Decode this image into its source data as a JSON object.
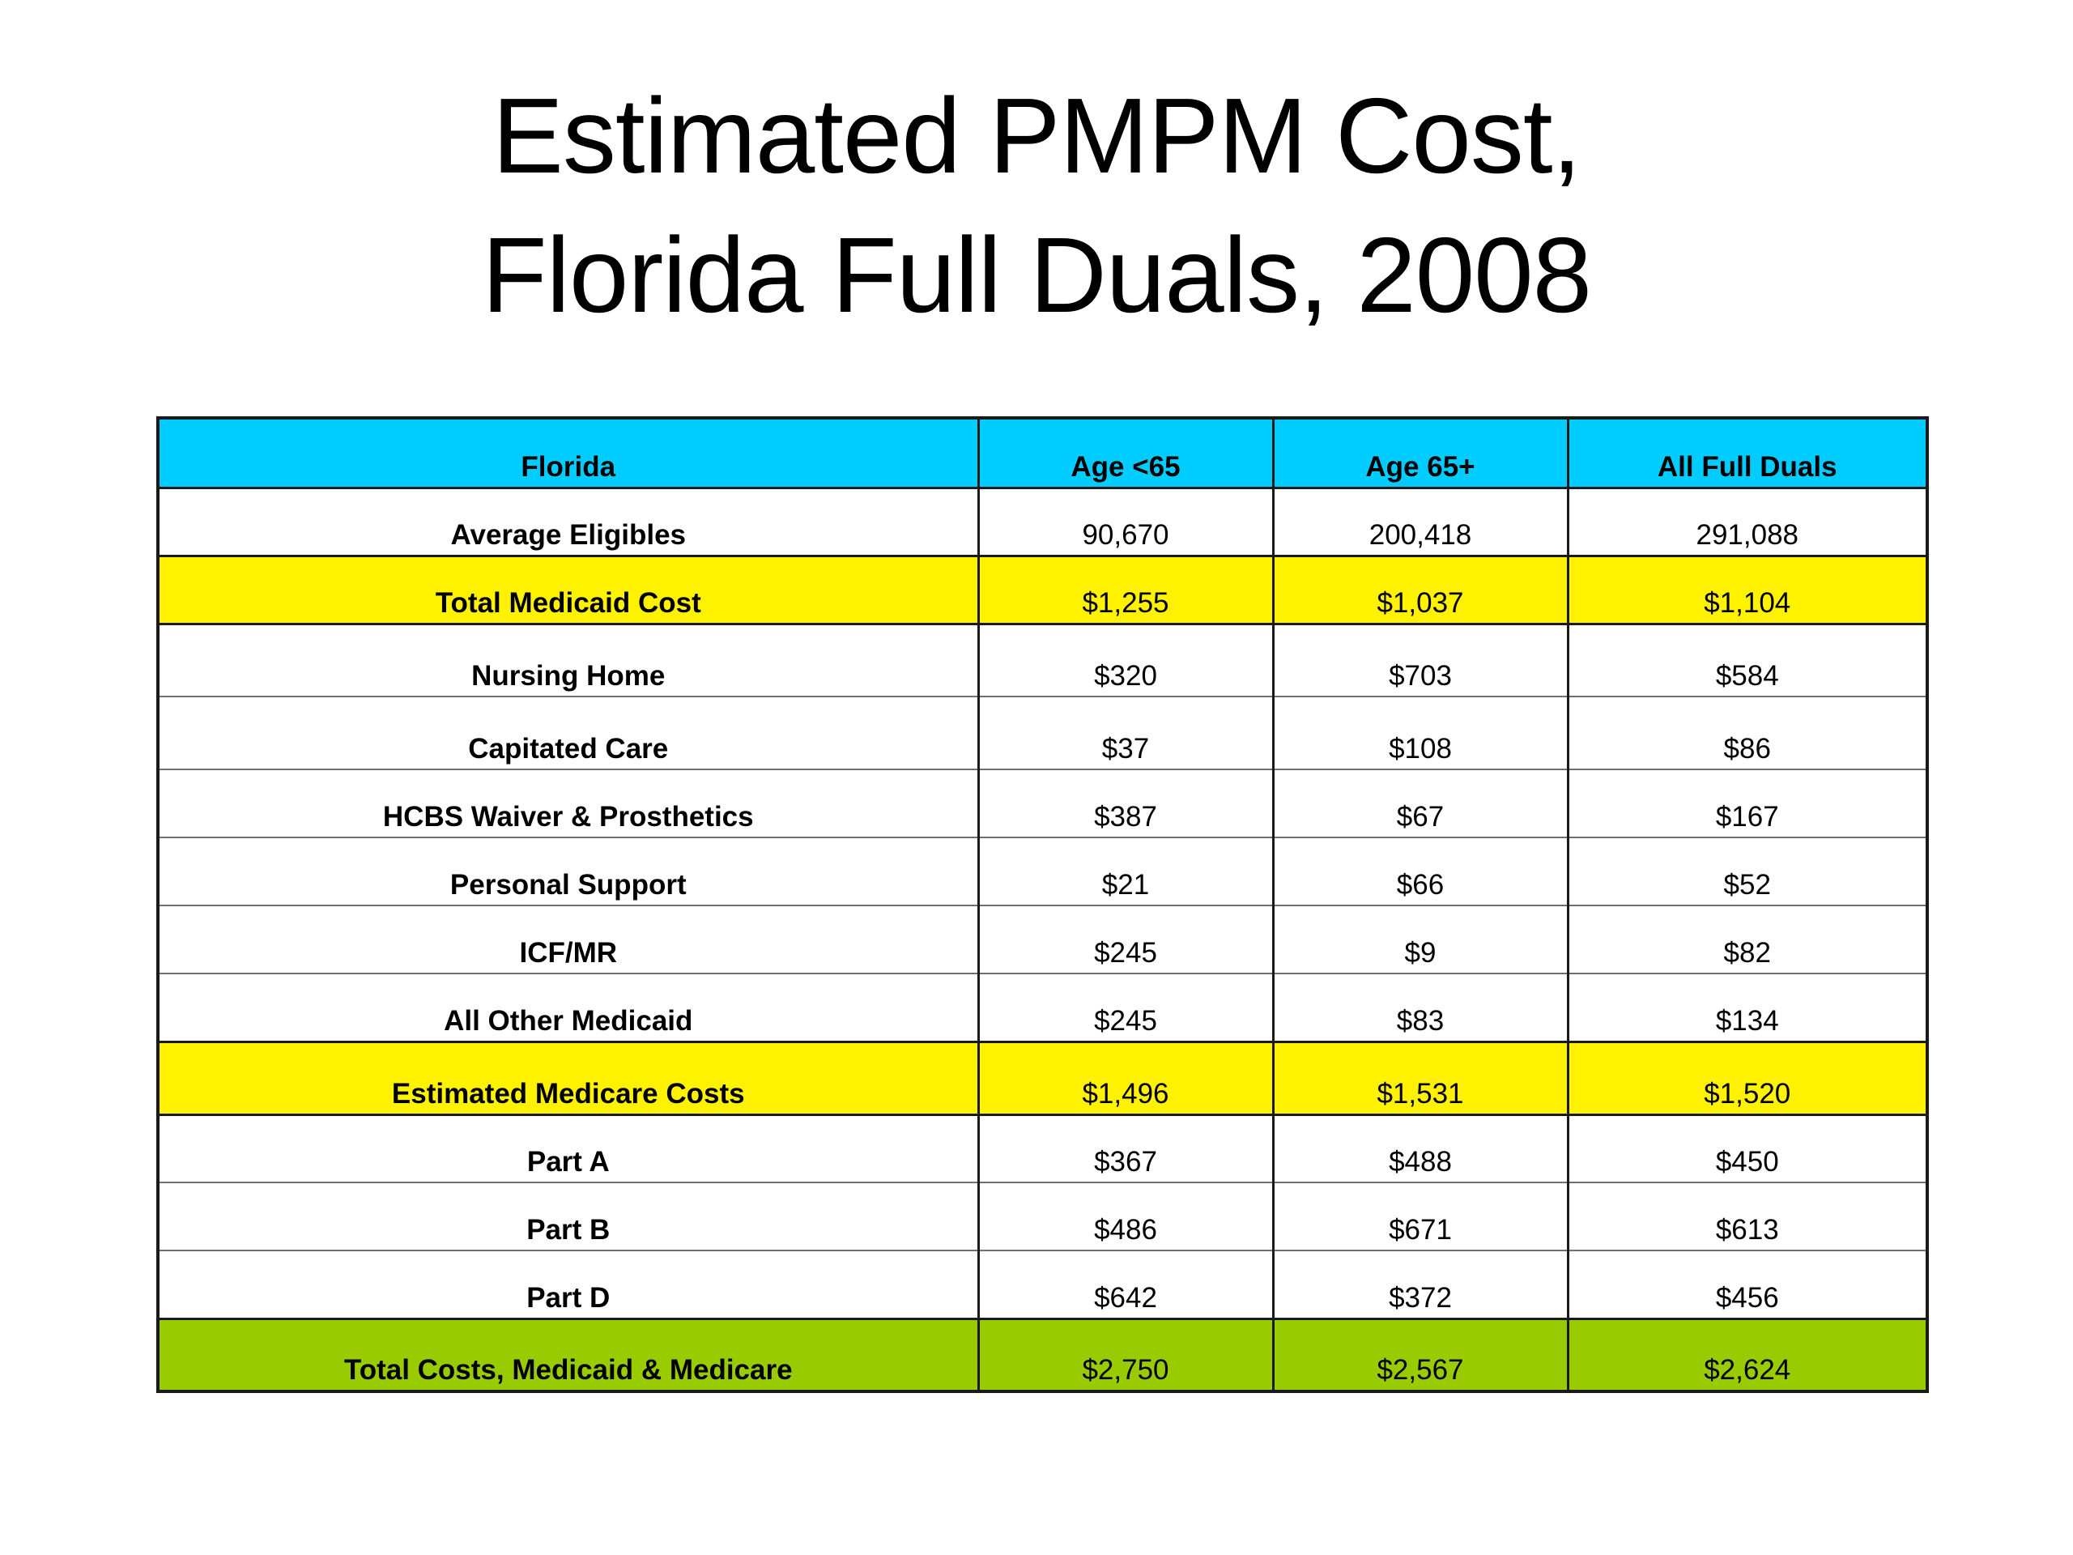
{
  "title": {
    "line1": "Estimated PMPM Cost,",
    "line2": "Florida Full Duals, 2008"
  },
  "table": {
    "headers": [
      "Florida",
      "Age <65",
      "Age 65+",
      "All Full Duals"
    ],
    "rows": [
      {
        "label": "Average Eligibles",
        "values": [
          "90,670",
          "200,418",
          "291,088"
        ]
      },
      {
        "label": "Total Medicaid Cost",
        "values": [
          "$1,255",
          "$1,037",
          "$1,104"
        ]
      },
      {
        "label": "Nursing Home",
        "values": [
          "$320",
          "$703",
          "$584"
        ]
      },
      {
        "label": "Capitated Care",
        "values": [
          "$37",
          "$108",
          "$86"
        ]
      },
      {
        "label": "HCBS Waiver & Prosthetics",
        "values": [
          "$387",
          "$67",
          "$167"
        ]
      },
      {
        "label": "Personal Support",
        "values": [
          "$21",
          "$66",
          "$52"
        ]
      },
      {
        "label": "ICF/MR",
        "values": [
          "$245",
          "$9",
          "$82"
        ]
      },
      {
        "label": "All Other Medicaid",
        "values": [
          "$245",
          "$83",
          "$134"
        ]
      },
      {
        "label": "Estimated Medicare Costs",
        "values": [
          "$1,496",
          "$1,531",
          "$1,520"
        ]
      },
      {
        "label": "Part A",
        "values": [
          "$367",
          "$488",
          "$450"
        ]
      },
      {
        "label": "Part B",
        "values": [
          "$486",
          "$671",
          "$613"
        ]
      },
      {
        "label": "Part D",
        "values": [
          "$642",
          "$372",
          "$456"
        ]
      },
      {
        "label": "Total Costs, Medicaid & Medicare",
        "values": [
          "$2,750",
          "$2,567",
          "$2,624"
        ]
      }
    ]
  },
  "colors": {
    "header": "#00ccff",
    "highlight_yellow": "#fff200",
    "highlight_green": "#99cc00"
  }
}
